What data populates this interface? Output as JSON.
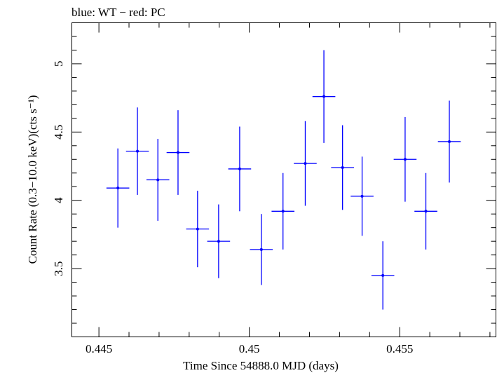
{
  "chart_data": {
    "type": "scatter",
    "title": "blue: WT − red: PC",
    "xlabel": "Time Since 54888.0 MJD (days)",
    "ylabel": "Count Rate (0.3−10.0 keV)(cts s⁻¹)",
    "xlim": [
      0.4441,
      0.4582
    ],
    "ylim": [
      3.0,
      5.3
    ],
    "x_ticks": [
      0.445,
      0.45,
      0.455
    ],
    "x_tick_labels": [
      "0.445",
      "0.45",
      "0.455"
    ],
    "y_ticks": [
      3.5,
      4,
      4.5,
      5
    ],
    "y_tick_labels": [
      "3.5",
      "4",
      "4.5",
      "5"
    ],
    "grid": false,
    "series": [
      {
        "color": "#0000ff",
        "points": [
          {
            "x": 0.44563,
            "xerr": 0.00038,
            "y": 4.09,
            "yerr": 0.29
          },
          {
            "x": 0.44628,
            "xerr": 0.00038,
            "y": 4.36,
            "yerr": 0.32
          },
          {
            "x": 0.44696,
            "xerr": 0.00038,
            "y": 4.15,
            "yerr": 0.3
          },
          {
            "x": 0.44763,
            "xerr": 0.00038,
            "y": 4.35,
            "yerr": 0.31
          },
          {
            "x": 0.44828,
            "xerr": 0.00038,
            "y": 3.79,
            "yerr": 0.28
          },
          {
            "x": 0.44898,
            "xerr": 0.00038,
            "y": 3.7,
            "yerr": 0.27
          },
          {
            "x": 0.44968,
            "xerr": 0.00038,
            "y": 4.23,
            "yerr": 0.31
          },
          {
            "x": 0.4504,
            "xerr": 0.00038,
            "y": 3.64,
            "yerr": 0.26
          },
          {
            "x": 0.45112,
            "xerr": 0.00038,
            "y": 3.92,
            "yerr": 0.28
          },
          {
            "x": 0.45186,
            "xerr": 0.00038,
            "y": 4.27,
            "yerr": 0.31
          },
          {
            "x": 0.45248,
            "xerr": 0.00038,
            "y": 4.76,
            "yerr": 0.34
          },
          {
            "x": 0.4531,
            "xerr": 0.00038,
            "y": 4.24,
            "yerr": 0.31
          },
          {
            "x": 0.45375,
            "xerr": 0.00038,
            "y": 4.03,
            "yerr": 0.29
          },
          {
            "x": 0.45444,
            "xerr": 0.00038,
            "y": 3.45,
            "yerr": 0.25
          },
          {
            "x": 0.45518,
            "xerr": 0.00038,
            "y": 4.3,
            "yerr": 0.31
          },
          {
            "x": 0.45587,
            "xerr": 0.00038,
            "y": 3.92,
            "yerr": 0.28
          },
          {
            "x": 0.45665,
            "xerr": 0.00038,
            "y": 4.43,
            "yerr": 0.3
          }
        ]
      }
    ]
  }
}
